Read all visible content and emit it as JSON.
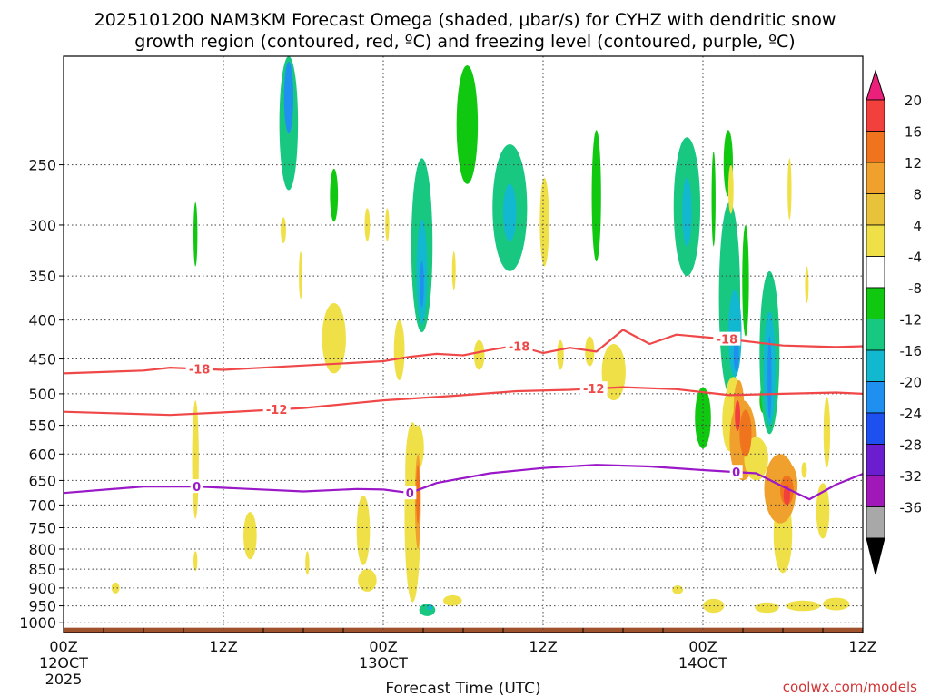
{
  "title": {
    "line1": "2025101200 NAM3KM Forecast Omega (shaded, μbar/s) for CYHZ with dendritic snow",
    "line2": "growth region (contoured, red, ºC) and freezing level (contoured, purple, ºC)"
  },
  "chart_data": {
    "type": "heatmap",
    "xlabel": "Forecast Time (UTC)",
    "ylabel": "",
    "x_range_hours": [
      0,
      60
    ],
    "y_range_hpa": [
      1030,
      180
    ],
    "y_scale": "log-pressure",
    "y_ticks": [
      "250",
      "300",
      "350",
      "400",
      "450",
      "500",
      "550",
      "600",
      "650",
      "700",
      "750",
      "800",
      "850",
      "900",
      "950",
      "1000"
    ],
    "x_ticks": [
      {
        "hour": 0,
        "l1": "00Z",
        "l2": "12OCT",
        "l3": "2025"
      },
      {
        "hour": 12,
        "l1": "12Z",
        "l2": "",
        "l3": ""
      },
      {
        "hour": 24,
        "l1": "00Z",
        "l2": "13OCT",
        "l3": ""
      },
      {
        "hour": 36,
        "l1": "12Z",
        "l2": "",
        "l3": ""
      },
      {
        "hour": 48,
        "l1": "00Z",
        "l2": "14OCT",
        "l3": ""
      },
      {
        "hour": 60,
        "l1": "12Z",
        "l2": "",
        "l3": ""
      }
    ],
    "grid": true,
    "colorbar": {
      "position": "right",
      "labels": [
        "20",
        "16",
        "12",
        "8",
        "4",
        "-4",
        "-8",
        "-12",
        "-16",
        "-20",
        "-24",
        "-28",
        "-32",
        "-36"
      ],
      "colors": [
        "#ec1f7a",
        "#f2403c",
        "#f0741e",
        "#f0a02c",
        "#e8c23a",
        "#f0e048",
        "#ffffff",
        "#10c810",
        "#18c880",
        "#12b8d0",
        "#1f90f0",
        "#1e50f0",
        "#6a1ed0",
        "#a019b8",
        "#a8a8a8",
        "#000000"
      ]
    },
    "omega_blobs": [
      {
        "t": 16.9,
        "p": 225,
        "rx": 0.7,
        "rp": 45,
        "v": -11
      },
      {
        "t": 16.9,
        "p": 205,
        "rx": 0.35,
        "rp": 22,
        "v": -16
      },
      {
        "t": 9.9,
        "p": 310,
        "rx": 0.15,
        "rp": 30,
        "v": -7
      },
      {
        "t": 20.3,
        "p": 275,
        "rx": 0.3,
        "rp": 22,
        "v": -6
      },
      {
        "t": 27.3,
        "p": 962,
        "rx": 0.6,
        "rp": 18,
        "v": -8
      },
      {
        "t": 27.5,
        "p": 955,
        "rx": 0.2,
        "rp": 8,
        "v": -12
      },
      {
        "t": 26.9,
        "p": 330,
        "rx": 0.8,
        "rp": 85,
        "v": -8
      },
      {
        "t": 26.9,
        "p": 350,
        "rx": 0.4,
        "rp": 55,
        "v": -12
      },
      {
        "t": 26.9,
        "p": 360,
        "rx": 0.15,
        "rp": 25,
        "v": -16
      },
      {
        "t": 30.3,
        "p": 225,
        "rx": 0.8,
        "rp": 40,
        "v": -7
      },
      {
        "t": 33.5,
        "p": 290,
        "rx": 1.3,
        "rp": 55,
        "v": -9
      },
      {
        "t": 33.5,
        "p": 290,
        "rx": 0.5,
        "rp": 25,
        "v": -12
      },
      {
        "t": 40.0,
        "p": 280,
        "rx": 0.35,
        "rp": 55,
        "v": -7
      },
      {
        "t": 46.8,
        "p": 290,
        "rx": 1.0,
        "rp": 60,
        "v": -9
      },
      {
        "t": 46.8,
        "p": 290,
        "rx": 0.35,
        "rp": 30,
        "v": -12
      },
      {
        "t": 48.0,
        "p": 540,
        "rx": 0.6,
        "rp": 50,
        "v": -7
      },
      {
        "t": 48.8,
        "p": 280,
        "rx": 0.15,
        "rp": 40,
        "v": -7
      },
      {
        "t": 49.9,
        "p": 250,
        "rx": 0.35,
        "rp": 25,
        "v": -7
      },
      {
        "t": 50.0,
        "p": 390,
        "rx": 0.8,
        "rp": 110,
        "v": -9
      },
      {
        "t": 50.4,
        "p": 420,
        "rx": 0.5,
        "rp": 55,
        "v": -13
      },
      {
        "t": 50.5,
        "p": 445,
        "rx": 0.2,
        "rp": 22,
        "v": -17
      },
      {
        "t": 51.2,
        "p": 360,
        "rx": 0.25,
        "rp": 60,
        "v": -7
      },
      {
        "t": 52.5,
        "p": 510,
        "rx": 0.25,
        "rp": 20,
        "v": -7
      },
      {
        "t": 53.0,
        "p": 455,
        "rx": 0.75,
        "rp": 110,
        "v": -9
      },
      {
        "t": 53.0,
        "p": 470,
        "rx": 0.45,
        "rp": 80,
        "v": -13
      },
      {
        "t": 53.0,
        "p": 480,
        "rx": 0.15,
        "rp": 60,
        "v": -19
      },
      {
        "t": 16.5,
        "p": 305,
        "rx": 0.2,
        "rp": 12,
        "v": 5
      },
      {
        "t": 17.8,
        "p": 350,
        "rx": 0.12,
        "rp": 25,
        "v": 5
      },
      {
        "t": 20.3,
        "p": 425,
        "rx": 0.9,
        "rp": 45,
        "v": 5
      },
      {
        "t": 22.8,
        "p": 300,
        "rx": 0.2,
        "rp": 15,
        "v": 5
      },
      {
        "t": 24.3,
        "p": 300,
        "rx": 0.15,
        "rp": 15,
        "v": 5
      },
      {
        "t": 25.2,
        "p": 440,
        "rx": 0.4,
        "rp": 40,
        "v": 5
      },
      {
        "t": 29.3,
        "p": 345,
        "rx": 0.12,
        "rp": 20,
        "v": 5
      },
      {
        "t": 31.2,
        "p": 445,
        "rx": 0.4,
        "rp": 20,
        "v": 5
      },
      {
        "t": 36.1,
        "p": 300,
        "rx": 0.35,
        "rp": 40,
        "v": 5
      },
      {
        "t": 37.3,
        "p": 445,
        "rx": 0.25,
        "rp": 20,
        "v": 5
      },
      {
        "t": 39.5,
        "p": 440,
        "rx": 0.35,
        "rp": 20,
        "v": 5
      },
      {
        "t": 41.3,
        "p": 470,
        "rx": 0.9,
        "rp": 40,
        "v": 5
      },
      {
        "t": 50.1,
        "p": 270,
        "rx": 0.2,
        "rp": 20,
        "v": 5
      },
      {
        "t": 54.5,
        "p": 270,
        "rx": 0.15,
        "rp": 25,
        "v": 5
      },
      {
        "t": 55.8,
        "p": 360,
        "rx": 0.12,
        "rp": 20,
        "v": 5
      },
      {
        "t": 9.9,
        "p": 620,
        "rx": 0.25,
        "rp": 110,
        "v": 5
      },
      {
        "t": 9.9,
        "p": 830,
        "rx": 0.15,
        "rp": 25,
        "v": 5
      },
      {
        "t": 3.9,
        "p": 900,
        "rx": 0.3,
        "rp": 15,
        "v": 5
      },
      {
        "t": 14.0,
        "p": 770,
        "rx": 0.5,
        "rp": 55,
        "v": 5
      },
      {
        "t": 18.3,
        "p": 835,
        "rx": 0.15,
        "rp": 30,
        "v": 5
      },
      {
        "t": 22.5,
        "p": 760,
        "rx": 0.5,
        "rp": 80,
        "v": 5
      },
      {
        "t": 22.8,
        "p": 880,
        "rx": 0.7,
        "rp": 30,
        "v": 5
      },
      {
        "t": 26.2,
        "p": 640,
        "rx": 0.55,
        "rp": 95,
        "v": 5
      },
      {
        "t": 26.2,
        "p": 750,
        "rx": 0.6,
        "rp": 190,
        "v": 7
      },
      {
        "t": 26.6,
        "p": 590,
        "rx": 0.45,
        "rp": 40,
        "v": 5
      },
      {
        "t": 26.6,
        "p": 700,
        "rx": 0.22,
        "rp": 100,
        "v": 10
      },
      {
        "t": 26.6,
        "p": 680,
        "rx": 0.12,
        "rp": 60,
        "v": 13
      },
      {
        "t": 29.2,
        "p": 935,
        "rx": 0.7,
        "rp": 15,
        "v": 5
      },
      {
        "t": 46.1,
        "p": 905,
        "rx": 0.4,
        "rp": 12,
        "v": 5
      },
      {
        "t": 48.8,
        "p": 950,
        "rx": 0.8,
        "rp": 20,
        "v": 5
      },
      {
        "t": 50.0,
        "p": 545,
        "rx": 0.55,
        "rp": 50,
        "v": 6
      },
      {
        "t": 50.3,
        "p": 500,
        "rx": 0.55,
        "rp": 25,
        "v": 7
      },
      {
        "t": 51.0,
        "p": 580,
        "rx": 1.0,
        "rp": 70,
        "v": 8
      },
      {
        "t": 52.0,
        "p": 610,
        "rx": 0.9,
        "rp": 40,
        "v": 6
      },
      {
        "t": 50.7,
        "p": 525,
        "rx": 0.4,
        "rp": 45,
        "v": 10
      },
      {
        "t": 51.2,
        "p": 565,
        "rx": 0.45,
        "rp": 40,
        "v": 12
      },
      {
        "t": 50.6,
        "p": 535,
        "rx": 0.2,
        "rp": 25,
        "v": 16
      },
      {
        "t": 54.0,
        "p": 770,
        "rx": 0.7,
        "rp": 90,
        "v": 5
      },
      {
        "t": 53.8,
        "p": 670,
        "rx": 1.2,
        "rp": 70,
        "v": 8
      },
      {
        "t": 54.3,
        "p": 660,
        "rx": 0.8,
        "rp": 45,
        "v": 11
      },
      {
        "t": 54.3,
        "p": 670,
        "rx": 0.5,
        "rp": 30,
        "v": 14
      },
      {
        "t": 54.3,
        "p": 680,
        "rx": 0.25,
        "rp": 20,
        "v": 16
      },
      {
        "t": 55.6,
        "p": 630,
        "rx": 0.2,
        "rp": 15,
        "v": 5
      },
      {
        "t": 57.3,
        "p": 565,
        "rx": 0.25,
        "rp": 60,
        "v": 5
      },
      {
        "t": 57.0,
        "p": 715,
        "rx": 0.5,
        "rp": 60,
        "v": 5
      },
      {
        "t": 55.5,
        "p": 950,
        "rx": 1.3,
        "rp": 15,
        "v": 5
      },
      {
        "t": 58.0,
        "p": 945,
        "rx": 1.0,
        "rp": 18,
        "v": 5
      },
      {
        "t": 52.8,
        "p": 955,
        "rx": 0.9,
        "rp": 15,
        "v": 5
      }
    ],
    "contours": [
      {
        "label": "-18",
        "color": "#f04848",
        "points": [
          [
            0,
            470
          ],
          [
            6,
            466
          ],
          [
            8,
            462
          ],
          [
            12,
            465
          ],
          [
            16,
            461
          ],
          [
            20,
            457
          ],
          [
            24,
            453
          ],
          [
            26,
            447
          ],
          [
            28,
            443
          ],
          [
            30,
            445
          ],
          [
            32,
            438
          ],
          [
            34,
            432
          ],
          [
            36,
            442
          ],
          [
            38,
            435
          ],
          [
            40,
            440
          ],
          [
            42,
            412
          ],
          [
            44,
            430
          ],
          [
            46,
            418
          ],
          [
            50,
            424
          ],
          [
            54,
            432
          ],
          [
            58,
            434
          ],
          [
            60,
            433
          ]
        ],
        "labels_at": [
          10.2,
          34.2,
          49.8
        ]
      },
      {
        "label": "-12",
        "color": "#f04848",
        "points": [
          [
            0,
            528
          ],
          [
            8,
            533
          ],
          [
            12,
            529
          ],
          [
            18,
            522
          ],
          [
            24,
            510
          ],
          [
            30,
            502
          ],
          [
            34,
            496
          ],
          [
            38,
            494
          ],
          [
            42,
            490
          ],
          [
            46,
            493
          ],
          [
            50,
            502
          ],
          [
            54,
            500
          ],
          [
            58,
            498
          ],
          [
            60,
            500
          ]
        ],
        "labels_at": [
          16.0,
          39.8
        ]
      },
      {
        "label": "0",
        "color": "#9a18c8",
        "points": [
          [
            0,
            675
          ],
          [
            6,
            662
          ],
          [
            10,
            662
          ],
          [
            14,
            667
          ],
          [
            18,
            672
          ],
          [
            22,
            667
          ],
          [
            24,
            668
          ],
          [
            26,
            675
          ],
          [
            28,
            655
          ],
          [
            32,
            636
          ],
          [
            36,
            626
          ],
          [
            40,
            620
          ],
          [
            44,
            623
          ],
          [
            48,
            630
          ],
          [
            52,
            636
          ],
          [
            54,
            662
          ],
          [
            56,
            688
          ],
          [
            58,
            658
          ],
          [
            60,
            637
          ]
        ],
        "labels_at": [
          10.0,
          26.0,
          50.5
        ]
      }
    ],
    "terrain": {
      "color": "#a0522d",
      "surface_pressure_hpa": 1015
    }
  },
  "footer": {
    "xlabel": "Forecast Time (UTC)",
    "credit": "coolwx.com/models"
  }
}
